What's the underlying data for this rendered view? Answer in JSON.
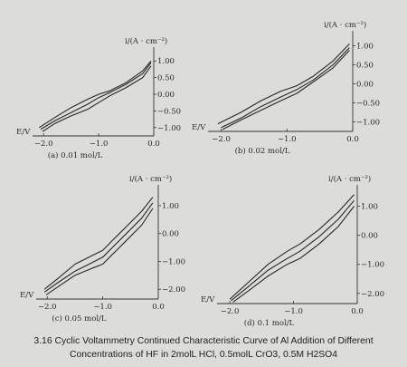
{
  "figure": {
    "caption_line1": "3.16 Cyclic Voltammetry Continued Characteristic Curve of Al Addition of Different",
    "caption_line2": "Concentrations of HF in 2molL HCl, 0.5molL CrO3, 0.5M H2SO4"
  },
  "chart_data": [
    {
      "type": "line",
      "panel": "a",
      "subtitle": "(a) 0.01 mol/L",
      "xlabel": "E/V",
      "ylabel": "i/(A · cm⁻²)",
      "x_ticks": [
        "−2.0",
        "−1.0",
        "0.0"
      ],
      "y_ticks": [
        "1.00",
        "0.50",
        "0.00",
        "−0.50",
        "−1.00"
      ],
      "xlim": [
        -2.2,
        0.0
      ],
      "ylim": [
        -1.25,
        1.25
      ],
      "series": [
        {
          "x": [
            -2.08,
            -1.8,
            -1.5,
            -1.2,
            -1.0,
            -0.8,
            -0.5,
            -0.2,
            -0.05
          ],
          "y": [
            -1.0,
            -0.7,
            -0.4,
            -0.15,
            0.0,
            0.1,
            0.35,
            0.7,
            1.0
          ]
        },
        {
          "x": [
            -2.05,
            -1.8,
            -1.5,
            -1.2,
            -1.0,
            -0.8,
            -0.5,
            -0.2,
            -0.05
          ],
          "y": [
            -1.05,
            -0.8,
            -0.55,
            -0.3,
            -0.1,
            0.05,
            0.3,
            0.62,
            0.95
          ]
        },
        {
          "x": [
            -2.02,
            -1.8,
            -1.5,
            -1.2,
            -1.0,
            -0.8,
            -0.5,
            -0.2,
            -0.05
          ],
          "y": [
            -1.12,
            -0.88,
            -0.65,
            -0.45,
            -0.25,
            -0.05,
            0.2,
            0.5,
            0.85
          ]
        }
      ]
    },
    {
      "type": "line",
      "panel": "b",
      "subtitle": "(b) 0.02 mol/L",
      "xlabel": "E/V",
      "ylabel": "i/(A · cm⁻²)",
      "x_ticks": [
        "−2.0",
        "−1.0",
        "0.0"
      ],
      "y_ticks": [
        "1.00",
        "0.50",
        "0.00",
        "−0.50",
        "−1.00"
      ],
      "xlim": [
        -2.2,
        0.0
      ],
      "ylim": [
        -1.25,
        1.25
      ],
      "series": [
        {
          "x": [
            -2.05,
            -1.7,
            -1.4,
            -1.1,
            -0.85,
            -0.6,
            -0.3,
            -0.05
          ],
          "y": [
            -1.05,
            -0.75,
            -0.45,
            -0.2,
            -0.05,
            0.2,
            0.6,
            1.05
          ]
        },
        {
          "x": [
            -2.0,
            -1.7,
            -1.4,
            -1.1,
            -0.85,
            -0.6,
            -0.3,
            -0.05
          ],
          "y": [
            -1.15,
            -0.9,
            -0.6,
            -0.35,
            -0.15,
            0.1,
            0.5,
            0.95
          ]
        },
        {
          "x": [
            -1.98,
            -1.7,
            -1.4,
            -1.1,
            -0.85,
            -0.6,
            -0.3,
            -0.05
          ],
          "y": [
            -1.2,
            -0.95,
            -0.7,
            -0.45,
            -0.25,
            0.05,
            0.42,
            0.88
          ]
        }
      ]
    },
    {
      "type": "line",
      "panel": "c",
      "subtitle": "(c) 0.05 mol/L",
      "xlabel": "E/V",
      "ylabel": "i/(A · cm⁻²)",
      "x_ticks": [
        "−2.0",
        "−1.0",
        "0.0"
      ],
      "y_ticks": [
        "1.00",
        "0.00",
        "−1.00",
        "−2.00"
      ],
      "xlim": [
        -2.2,
        0.0
      ],
      "ylim": [
        -2.35,
        1.55
      ],
      "series": [
        {
          "x": [
            -2.05,
            -1.8,
            -1.5,
            -1.2,
            -1.0,
            -0.8,
            -0.55,
            -0.3,
            -0.1
          ],
          "y": [
            -2.0,
            -1.6,
            -1.1,
            -0.8,
            -0.6,
            -0.2,
            0.3,
            0.8,
            1.3
          ]
        },
        {
          "x": [
            -2.05,
            -1.8,
            -1.5,
            -1.2,
            -1.0,
            -0.8,
            -0.55,
            -0.3,
            -0.1
          ],
          "y": [
            -2.1,
            -1.75,
            -1.35,
            -1.05,
            -0.85,
            -0.45,
            0.05,
            0.55,
            1.1
          ]
        },
        {
          "x": [
            -2.02,
            -1.8,
            -1.5,
            -1.2,
            -1.0,
            -0.8,
            -0.55,
            -0.3,
            -0.1
          ],
          "y": [
            -2.2,
            -1.9,
            -1.5,
            -1.25,
            -1.1,
            -0.7,
            -0.2,
            0.3,
            0.9
          ]
        }
      ]
    },
    {
      "type": "line",
      "panel": "d",
      "subtitle": "(d) 0.1 mol/L",
      "xlabel": "E/V",
      "ylabel": "i/(A · cm⁻²)",
      "x_ticks": [
        "−2.0",
        "−1.0",
        "0.0"
      ],
      "y_ticks": [
        "1.00",
        "0.00",
        "−1.00",
        "−2.00"
      ],
      "xlim": [
        -2.2,
        0.0
      ],
      "ylim": [
        -2.35,
        1.55
      ],
      "series": [
        {
          "x": [
            -2.0,
            -1.7,
            -1.4,
            -1.1,
            -0.9,
            -0.6,
            -0.3,
            -0.05
          ],
          "y": [
            -2.2,
            -1.6,
            -1.0,
            -0.55,
            -0.3,
            0.2,
            0.8,
            1.4
          ]
        },
        {
          "x": [
            -1.98,
            -1.7,
            -1.4,
            -1.1,
            -0.9,
            -0.6,
            -0.3,
            -0.05
          ],
          "y": [
            -2.25,
            -1.75,
            -1.2,
            -0.8,
            -0.55,
            -0.05,
            0.55,
            1.2
          ]
        },
        {
          "x": [
            -1.95,
            -1.7,
            -1.4,
            -1.1,
            -0.9,
            -0.6,
            -0.3,
            -0.05
          ],
          "y": [
            -2.3,
            -1.9,
            -1.4,
            -1.0,
            -0.8,
            -0.3,
            0.3,
            1.0
          ]
        }
      ]
    }
  ]
}
